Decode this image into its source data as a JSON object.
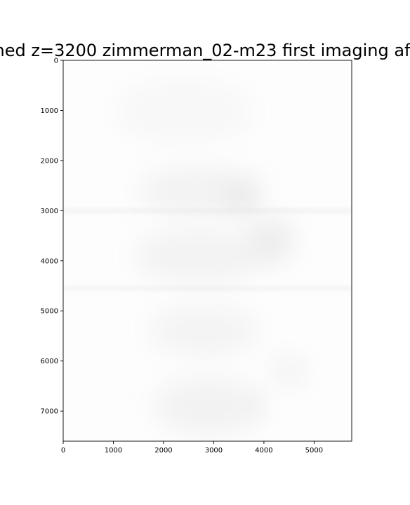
{
  "chart_data": {
    "type": "heatmap",
    "title": "ned z=3200 zimmerman_02-m23 first imaging af",
    "xlabel": "",
    "ylabel": "",
    "xlim": [
      0,
      5750
    ],
    "ylim": [
      7600,
      0
    ],
    "y_inverted": true,
    "x_ticks": [
      0,
      1000,
      2000,
      3000,
      4000,
      5000
    ],
    "x_tick_labels": [
      "0",
      "1000",
      "2000",
      "3000",
      "4000",
      "5000"
    ],
    "y_ticks": [
      0,
      1000,
      2000,
      3000,
      4000,
      5000,
      6000,
      7000
    ],
    "y_tick_labels": [
      "0",
      "1000",
      "2000",
      "3000",
      "4000",
      "5000",
      "6000",
      "7000"
    ],
    "grid": false,
    "colormap": "grayscale",
    "background_color": "#fdfdfd",
    "blob_color": "#dcdcdc",
    "blobs": [
      {
        "x": 2400,
        "y": 1000,
        "rx": 1400,
        "ry": 650,
        "opacity": 0.18
      },
      {
        "x": 2700,
        "y": 2600,
        "rx": 1200,
        "ry": 450,
        "opacity": 0.35
      },
      {
        "x": 3600,
        "y": 2750,
        "rx": 350,
        "ry": 350,
        "opacity": 0.45
      },
      {
        "x": 4150,
        "y": 3600,
        "rx": 450,
        "ry": 450,
        "opacity": 0.5
      },
      {
        "x": 2700,
        "y": 3900,
        "rx": 1300,
        "ry": 550,
        "opacity": 0.32
      },
      {
        "x": 2800,
        "y": 5400,
        "rx": 1100,
        "ry": 500,
        "opacity": 0.28
      },
      {
        "x": 4500,
        "y": 6200,
        "rx": 350,
        "ry": 300,
        "opacity": 0.35
      },
      {
        "x": 2900,
        "y": 6900,
        "rx": 1100,
        "ry": 550,
        "opacity": 0.35
      },
      {
        "x": 3850,
        "y": 6900,
        "rx": 120,
        "ry": 250,
        "opacity": 0.4
      }
    ],
    "stripes": [
      {
        "y": 3000,
        "opacity": 0.35
      },
      {
        "y": 4550,
        "opacity": 0.3
      }
    ]
  }
}
